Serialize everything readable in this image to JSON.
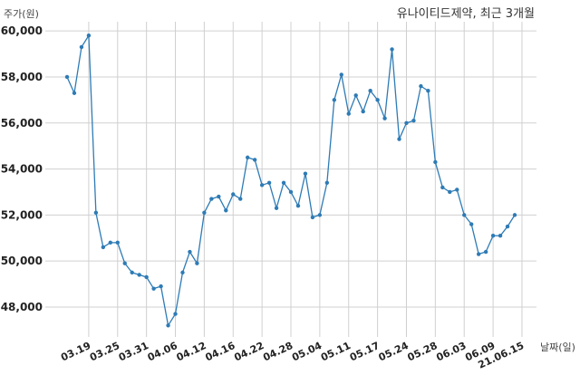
{
  "chart_data": {
    "type": "line",
    "title": "유나이티드제약, 최근 3개월",
    "ylabel": "주가(원)",
    "xlabel": "날짜(일)",
    "ylim": [
      46700,
      60400
    ],
    "yticks": [
      48000,
      50000,
      52000,
      54000,
      56000,
      58000,
      60000
    ],
    "ytick_labels": [
      "48,000",
      "50,000",
      "52,000",
      "54,000",
      "56,000",
      "58,000",
      "60,000"
    ],
    "xtick_labels": [
      "03.19",
      "03.25",
      "03.31",
      "04.06",
      "04.12",
      "04.16",
      "04.22",
      "04.28",
      "05.04",
      "05.11",
      "05.17",
      "05.24",
      "05.28",
      "06.03",
      "06.09",
      "21.06.15"
    ],
    "xtick_index": [
      3,
      7,
      11,
      15,
      19,
      23,
      27,
      31,
      35,
      39,
      43,
      47,
      51,
      55,
      59,
      63
    ],
    "grid": true,
    "series": [
      {
        "values": [
          58000,
          57300,
          59300,
          59800,
          52100,
          50600,
          50800,
          50800,
          49900,
          49500,
          49400,
          49300,
          48800,
          48900,
          47200,
          47700,
          49500,
          50400,
          49900,
          52100,
          52700,
          52800,
          52200,
          52900,
          52700,
          54500,
          54400,
          53300,
          53400,
          52300,
          53400,
          53000,
          52400,
          53800,
          51900,
          52000,
          53400,
          57000,
          58100,
          56400,
          57200,
          56500,
          57400,
          57000,
          56200,
          59200,
          55300,
          56000,
          56100,
          57600,
          57400,
          54300,
          53200,
          53000,
          53100,
          52000,
          51600,
          50300,
          50400,
          51100,
          51100,
          51500,
          52000
        ]
      }
    ]
  }
}
